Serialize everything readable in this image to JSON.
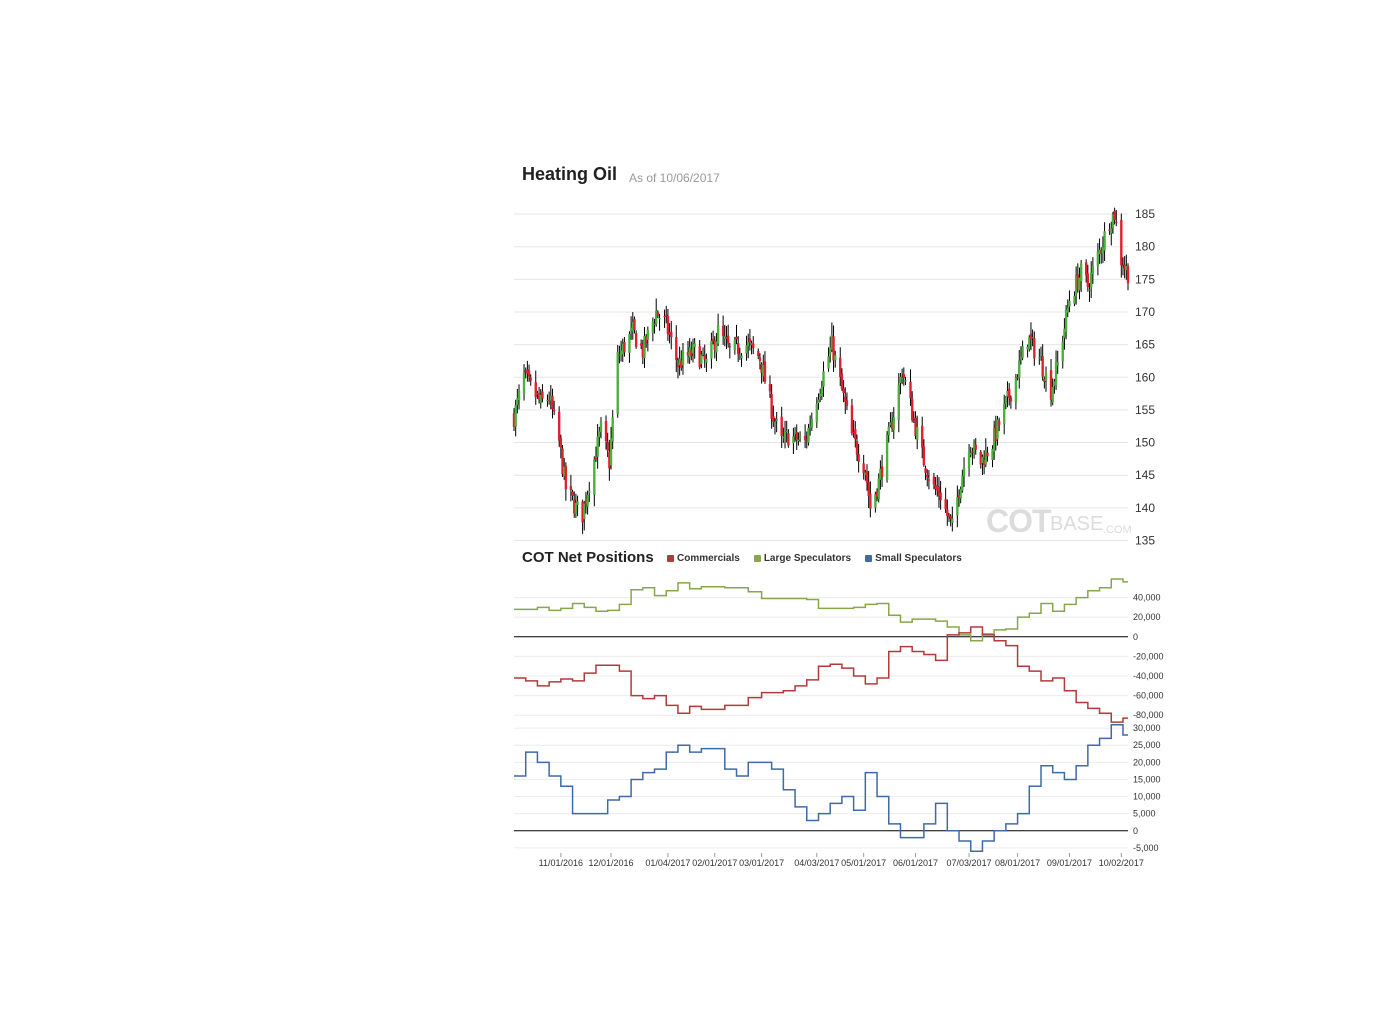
{
  "header": {
    "title": "Heating Oil",
    "as_of": "As of 10/06/2017"
  },
  "watermark": {
    "part1": "COT",
    "part2": "BASE",
    "part3": ".COM"
  },
  "cot": {
    "title": "COT Net Positions",
    "legend": [
      {
        "name": "Commercials",
        "color": "#b33a3a"
      },
      {
        "name": "Large Speculators",
        "color": "#86a84a"
      },
      {
        "name": "Small Speculators",
        "color": "#3f6aa8"
      }
    ]
  },
  "chart_data": [
    {
      "type": "candlestick",
      "ylim": [
        134,
        187
      ],
      "yticks": [
        135,
        140,
        145,
        150,
        155,
        160,
        165,
        170,
        175,
        180,
        185
      ],
      "x_range": [
        "10/04/2016",
        "10/06/2017"
      ],
      "colors": {
        "up": "#4caf3e",
        "down": "#e0202e",
        "wick": "#000000"
      },
      "close_path": [
        [
          "10/04/2016",
          154
        ],
        [
          "10/10/2016",
          160
        ],
        [
          "10/20/2016",
          156
        ],
        [
          "10/25/2016",
          157
        ],
        [
          "10/31/2016",
          150
        ],
        [
          "11/04/2016",
          143
        ],
        [
          "11/10/2016",
          140
        ],
        [
          "11/14/2016",
          139
        ],
        [
          "11/18/2016",
          144
        ],
        [
          "11/25/2016",
          152
        ],
        [
          "11/30/2016",
          147
        ],
        [
          "12/05/2016",
          163
        ],
        [
          "12/14/2016",
          167
        ],
        [
          "12/20/2016",
          164
        ],
        [
          "12/28/2016",
          170
        ],
        [
          "01/03/2017",
          168
        ],
        [
          "01/10/2017",
          162
        ],
        [
          "01/20/2017",
          164
        ],
        [
          "01/27/2017",
          162
        ],
        [
          "02/03/2017",
          167
        ],
        [
          "02/10/2017",
          164
        ],
        [
          "02/20/2017",
          165
        ],
        [
          "02/28/2017",
          163
        ],
        [
          "03/08/2017",
          154
        ],
        [
          "03/13/2017",
          150
        ],
        [
          "03/17/2017",
          151
        ],
        [
          "03/27/2017",
          150
        ],
        [
          "04/03/2017",
          157
        ],
        [
          "04/12/2017",
          165
        ],
        [
          "04/18/2017",
          158
        ],
        [
          "04/24/2017",
          151
        ],
        [
          "05/02/2017",
          146
        ],
        [
          "05/05/2017",
          140
        ],
        [
          "05/10/2017",
          144
        ],
        [
          "05/17/2017",
          152
        ],
        [
          "05/24/2017",
          161
        ],
        [
          "05/26/2017",
          159
        ],
        [
          "06/05/2017",
          148
        ],
        [
          "06/12/2017",
          143
        ],
        [
          "06/16/2017",
          142
        ],
        [
          "06/21/2017",
          138
        ],
        [
          "06/23/2017",
          137
        ],
        [
          "06/27/2017",
          143
        ],
        [
          "07/03/2017",
          150
        ],
        [
          "07/10/2017",
          147
        ],
        [
          "07/17/2017",
          150
        ],
        [
          "07/24/2017",
          155
        ],
        [
          "07/31/2017",
          160
        ],
        [
          "08/07/2017",
          166
        ],
        [
          "08/14/2017",
          163
        ],
        [
          "08/21/2017",
          158
        ],
        [
          "08/25/2017",
          162
        ],
        [
          "09/01/2017",
          172
        ],
        [
          "09/08/2017",
          176
        ],
        [
          "09/12/2017",
          174
        ],
        [
          "09/20/2017",
          180
        ],
        [
          "09/25/2017",
          184
        ],
        [
          "09/28/2017",
          185
        ],
        [
          "10/02/2017",
          178
        ],
        [
          "10/06/2017",
          176
        ]
      ]
    },
    {
      "type": "line",
      "ylim": [
        -92000,
        62000
      ],
      "yticks": [
        -80000,
        -60000,
        -40000,
        -20000,
        0,
        20000,
        40000
      ],
      "ytick_labels": [
        "-80,000",
        "-60,000",
        "-40,000",
        "-20,000",
        "0",
        "20,000",
        "40,000"
      ],
      "x_range": [
        "10/04/2016",
        "10/06/2017"
      ],
      "series": [
        {
          "name": "Large Speculators",
          "color": "#86a84a",
          "points": [
            [
              "10/04/2016",
              28000
            ],
            [
              "10/18/2016",
              30000
            ],
            [
              "10/25/2016",
              27000
            ],
            [
              "11/01/2016",
              29000
            ],
            [
              "11/08/2016",
              34000
            ],
            [
              "11/15/2016",
              30000
            ],
            [
              "11/22/2016",
              26000
            ],
            [
              "11/29/2016",
              27000
            ],
            [
              "12/06/2016",
              33000
            ],
            [
              "12/13/2016",
              48000
            ],
            [
              "12/20/2016",
              50000
            ],
            [
              "12/27/2016",
              42000
            ],
            [
              "01/03/2017",
              47000
            ],
            [
              "01/10/2017",
              55000
            ],
            [
              "01/17/2017",
              49000
            ],
            [
              "01/24/2017",
              51000
            ],
            [
              "02/07/2017",
              50000
            ],
            [
              "02/21/2017",
              46000
            ],
            [
              "03/01/2017",
              39000
            ],
            [
              "03/28/2017",
              38000
            ],
            [
              "04/04/2017",
              29000
            ],
            [
              "04/25/2017",
              30000
            ],
            [
              "05/02/2017",
              33000
            ],
            [
              "05/09/2017",
              34000
            ],
            [
              "05/16/2017",
              22000
            ],
            [
              "05/23/2017",
              15000
            ],
            [
              "05/30/2017",
              18000
            ],
            [
              "06/06/2017",
              18000
            ],
            [
              "06/13/2017",
              16000
            ],
            [
              "06/20/2017",
              10000
            ],
            [
              "06/27/2017",
              2000
            ],
            [
              "07/04/2017",
              -4000
            ],
            [
              "07/11/2017",
              3000
            ],
            [
              "07/18/2017",
              7000
            ],
            [
              "07/25/2017",
              8000
            ],
            [
              "08/01/2017",
              20000
            ],
            [
              "08/08/2017",
              24000
            ],
            [
              "08/15/2017",
              34000
            ],
            [
              "08/22/2017",
              26000
            ],
            [
              "08/29/2017",
              33000
            ],
            [
              "09/05/2017",
              40000
            ],
            [
              "09/12/2017",
              47000
            ],
            [
              "09/19/2017",
              50000
            ],
            [
              "09/26/2017",
              59000
            ],
            [
              "10/03/2017",
              56000
            ]
          ]
        },
        {
          "name": "Commercials",
          "color": "#b33a3a",
          "points": [
            [
              "10/04/2016",
              -42000
            ],
            [
              "10/11/2016",
              -45000
            ],
            [
              "10/18/2016",
              -50000
            ],
            [
              "10/25/2016",
              -46000
            ],
            [
              "11/01/2016",
              -43000
            ],
            [
              "11/08/2016",
              -45000
            ],
            [
              "11/15/2016",
              -37000
            ],
            [
              "11/22/2016",
              -29000
            ],
            [
              "12/06/2016",
              -35000
            ],
            [
              "12/13/2016",
              -60000
            ],
            [
              "12/20/2016",
              -63000
            ],
            [
              "12/27/2016",
              -60000
            ],
            [
              "01/03/2017",
              -70000
            ],
            [
              "01/10/2017",
              -78000
            ],
            [
              "01/17/2017",
              -71000
            ],
            [
              "01/24/2017",
              -74000
            ],
            [
              "02/07/2017",
              -70000
            ],
            [
              "02/21/2017",
              -62000
            ],
            [
              "03/01/2017",
              -57000
            ],
            [
              "03/14/2017",
              -55000
            ],
            [
              "03/21/2017",
              -50000
            ],
            [
              "03/28/2017",
              -44000
            ],
            [
              "04/04/2017",
              -30000
            ],
            [
              "04/11/2017",
              -28000
            ],
            [
              "04/18/2017",
              -32000
            ],
            [
              "04/25/2017",
              -40000
            ],
            [
              "05/02/2017",
              -48000
            ],
            [
              "05/09/2017",
              -42000
            ],
            [
              "05/16/2017",
              -15000
            ],
            [
              "05/23/2017",
              -10000
            ],
            [
              "05/30/2017",
              -15000
            ],
            [
              "06/06/2017",
              -18000
            ],
            [
              "06/13/2017",
              -24000
            ],
            [
              "06/20/2017",
              2000
            ],
            [
              "06/27/2017",
              4000
            ],
            [
              "07/04/2017",
              10000
            ],
            [
              "07/11/2017",
              2000
            ],
            [
              "07/18/2017",
              -4000
            ],
            [
              "07/25/2017",
              -9000
            ],
            [
              "08/01/2017",
              -30000
            ],
            [
              "08/08/2017",
              -35000
            ],
            [
              "08/15/2017",
              -45000
            ],
            [
              "08/22/2017",
              -42000
            ],
            [
              "08/29/2017",
              -55000
            ],
            [
              "09/05/2017",
              -67000
            ],
            [
              "09/12/2017",
              -73000
            ],
            [
              "09/19/2017",
              -78000
            ],
            [
              "09/26/2017",
              -87000
            ],
            [
              "10/03/2017",
              -83000
            ]
          ]
        }
      ]
    },
    {
      "type": "line",
      "ylim": [
        -6500,
        31500
      ],
      "yticks": [
        -5000,
        0,
        5000,
        10000,
        15000,
        20000,
        25000,
        30000
      ],
      "ytick_labels": [
        "-5,000",
        "0",
        "5,000",
        "10,000",
        "15,000",
        "20,000",
        "25,000",
        "30,000"
      ],
      "xticks": [
        "11/01/2016",
        "12/01/2016",
        "01/04/2017",
        "02/01/2017",
        "03/01/2017",
        "04/03/2017",
        "05/01/2017",
        "06/01/2017",
        "07/03/2017",
        "08/01/2017",
        "09/01/2017",
        "10/02/2017"
      ],
      "x_range": [
        "10/04/2016",
        "10/06/2017"
      ],
      "series": [
        {
          "name": "Small Speculators",
          "color": "#3f6aa8",
          "points": [
            [
              "10/04/2016",
              16000
            ],
            [
              "10/11/2016",
              23000
            ],
            [
              "10/18/2016",
              20000
            ],
            [
              "10/25/2016",
              16000
            ],
            [
              "11/01/2016",
              13000
            ],
            [
              "11/08/2016",
              5000
            ],
            [
              "11/22/2016",
              5000
            ],
            [
              "11/29/2016",
              9000
            ],
            [
              "12/06/2016",
              10000
            ],
            [
              "12/13/2016",
              15000
            ],
            [
              "12/20/2016",
              17000
            ],
            [
              "12/27/2016",
              18000
            ],
            [
              "01/03/2017",
              23000
            ],
            [
              "01/10/2017",
              25000
            ],
            [
              "01/17/2017",
              23000
            ],
            [
              "01/24/2017",
              24000
            ],
            [
              "02/07/2017",
              18000
            ],
            [
              "02/14/2017",
              16000
            ],
            [
              "02/21/2017",
              20000
            ],
            [
              "03/07/2017",
              18000
            ],
            [
              "03/14/2017",
              12000
            ],
            [
              "03/21/2017",
              7000
            ],
            [
              "03/28/2017",
              3000
            ],
            [
              "04/04/2017",
              5000
            ],
            [
              "04/11/2017",
              8000
            ],
            [
              "04/18/2017",
              10000
            ],
            [
              "04/25/2017",
              6000
            ],
            [
              "05/02/2017",
              17000
            ],
            [
              "05/09/2017",
              10000
            ],
            [
              "05/16/2017",
              2000
            ],
            [
              "05/23/2017",
              -2000
            ],
            [
              "06/06/2017",
              2000
            ],
            [
              "06/13/2017",
              8000
            ],
            [
              "06/20/2017",
              0
            ],
            [
              "06/27/2017",
              -3000
            ],
            [
              "07/04/2017",
              -6000
            ],
            [
              "07/11/2017",
              -3000
            ],
            [
              "07/18/2017",
              0
            ],
            [
              "07/25/2017",
              2000
            ],
            [
              "08/01/2017",
              5000
            ],
            [
              "08/08/2017",
              13000
            ],
            [
              "08/15/2017",
              19000
            ],
            [
              "08/22/2017",
              17000
            ],
            [
              "08/29/2017",
              15000
            ],
            [
              "09/05/2017",
              19000
            ],
            [
              "09/12/2017",
              25000
            ],
            [
              "09/19/2017",
              27000
            ],
            [
              "09/26/2017",
              31000
            ],
            [
              "10/03/2017",
              28000
            ]
          ]
        }
      ]
    }
  ]
}
